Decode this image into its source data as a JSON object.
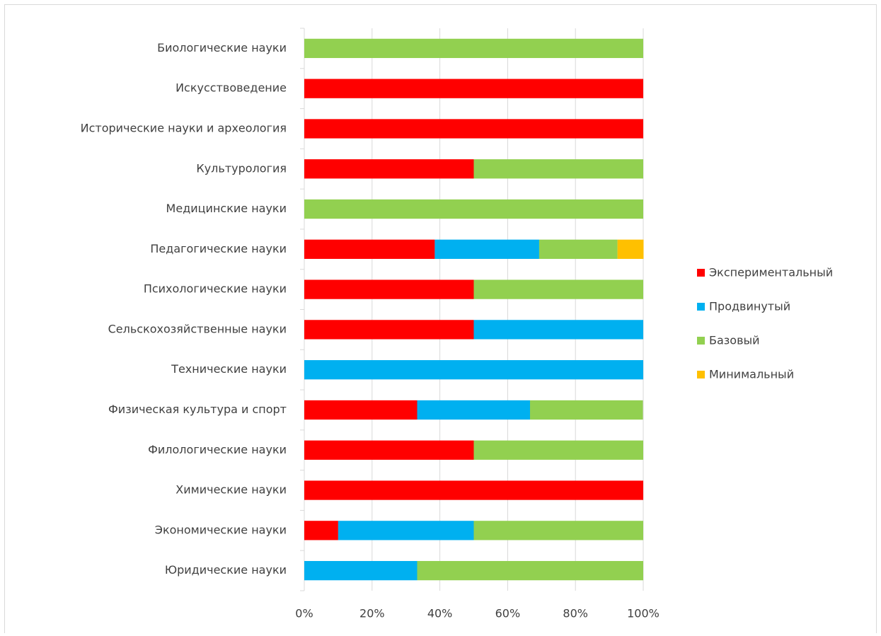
{
  "chart_data": {
    "type": "stacked_barh",
    "categories": [
      "Биологические науки",
      "Искусствоведение",
      "Исторические науки и археология",
      "Культурология",
      "Медицинские науки",
      "Педагогические науки",
      "Психологические науки",
      "Сельскохозяйственные науки",
      "Технические науки",
      "Физическая культура и спорт",
      "Филологические науки",
      "Химические науки",
      "Экономические науки",
      "Юридические науки"
    ],
    "series": [
      {
        "name": "Экспериментальный",
        "color": "#ff0000",
        "values": [
          0,
          100,
          100,
          50,
          0,
          38.5,
          50,
          50,
          0,
          33.3,
          50,
          100,
          10,
          0
        ]
      },
      {
        "name": "Продвинутый",
        "color": "#00b0f0",
        "values": [
          0,
          0,
          0,
          0,
          0,
          30.8,
          0,
          50,
          100,
          33.3,
          0,
          0,
          40,
          33.3
        ]
      },
      {
        "name": "Базовый",
        "color": "#92d050",
        "values": [
          100,
          0,
          0,
          50,
          100,
          23.1,
          50,
          0,
          0,
          33.3,
          50,
          0,
          50,
          66.7
        ]
      },
      {
        "name": "Минимальный",
        "color": "#ffc000",
        "values": [
          0,
          0,
          0,
          0,
          0,
          7.7,
          0,
          0,
          0,
          0,
          0,
          0,
          0,
          0
        ]
      }
    ],
    "xlim": [
      0,
      100
    ],
    "xticks": [
      {
        "value": 0,
        "label": "0%"
      },
      {
        "value": 20,
        "label": "20%"
      },
      {
        "value": 40,
        "label": "40%"
      },
      {
        "value": 60,
        "label": "60%"
      },
      {
        "value": 80,
        "label": "80%"
      },
      {
        "value": 100,
        "label": "100%"
      }
    ],
    "grid": true,
    "legend": "right"
  }
}
